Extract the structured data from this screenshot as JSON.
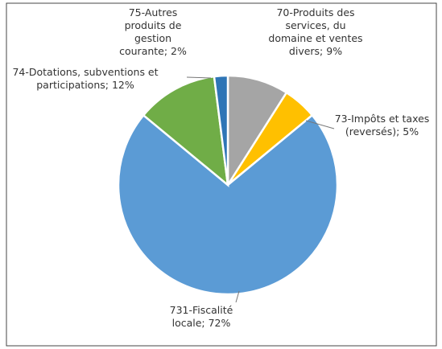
{
  "chart_data": {
    "type": "pie",
    "labels": [
      "70-Produits des services, du domaine et ventes divers; 9%",
      "73-Impôts et taxes (reversés); 5%",
      "731-Fiscalité locale; 72%",
      "74-Dotations, subventions et participations; 12%",
      "75-Autres produits de gestion courante; 2%"
    ],
    "values": [
      9,
      5,
      72,
      12,
      2
    ],
    "colors": [
      "#a5a5a5",
      "#ffc000",
      "#5b9bd5",
      "#70ad47",
      "#2e75b6"
    ]
  }
}
